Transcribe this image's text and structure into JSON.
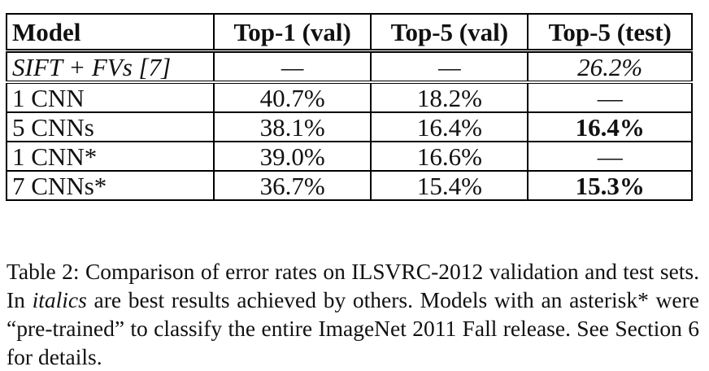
{
  "table": {
    "headers": [
      "Model",
      "Top-1 (val)",
      "Top-5 (val)",
      "Top-5 (test)"
    ],
    "rows": [
      {
        "model": "SIFT + FVs [7]",
        "top1_val": "—",
        "top5_val": "—",
        "top5_test": "26.2%"
      },
      {
        "model": "1 CNN",
        "top1_val": "40.7%",
        "top5_val": "18.2%",
        "top5_test": "—"
      },
      {
        "model": "5 CNNs",
        "top1_val": "38.1%",
        "top5_val": "16.4%",
        "top5_test": "16.4%"
      },
      {
        "model": "1 CNN*",
        "top1_val": "39.0%",
        "top5_val": "16.6%",
        "top5_test": "—"
      },
      {
        "model": "7 CNNs*",
        "top1_val": "36.7%",
        "top5_val": "15.4%",
        "top5_test": "15.3%"
      }
    ]
  },
  "caption": {
    "part1": "Table 2: Comparison of error rates on ILSVRC-2012 validation and test sets. In ",
    "italic": "italics",
    "part2": " are best results achieved by others. Models with an asterisk* were “pre-trained” to classify the entire ImageNet 2011 Fall release. See Section 6 for details."
  }
}
